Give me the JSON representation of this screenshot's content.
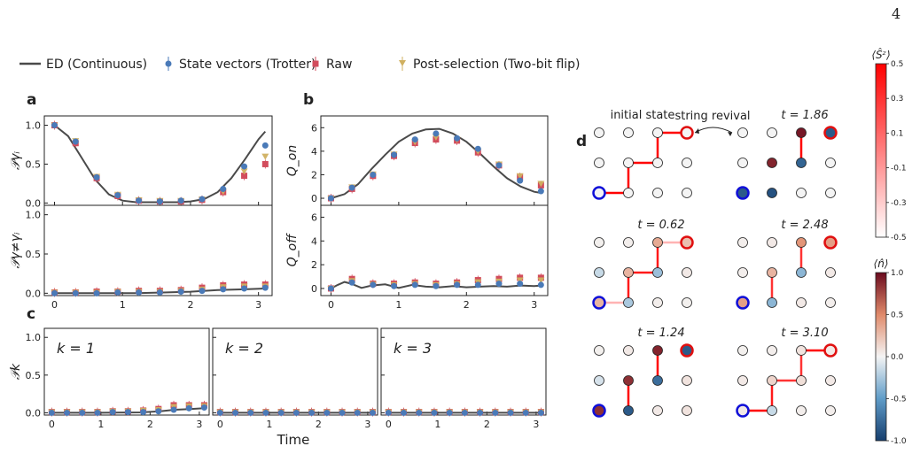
{
  "page_number": "4",
  "panel_labels": {
    "a": "a",
    "b": "b",
    "c": "c",
    "d": "d"
  },
  "legend": [
    {
      "label": "ED (Continuous)",
      "kind": "line",
      "color": "#4a4a4a"
    },
    {
      "label": "State vectors (Trotter)",
      "kind": "circle",
      "color": "#4a7ab8"
    },
    {
      "label": "Raw",
      "kind": "square",
      "color": "#d24c5c"
    },
    {
      "label": "Post-selection (Two-bit flip)",
      "kind": "triangle",
      "color": "#d0b060"
    }
  ],
  "xlabel": "Time",
  "colorbars": {
    "sz": {
      "label": "⟨Ŝᶻ⟩",
      "ticks": [
        "0.5",
        "0.3",
        "0.1",
        "-0.1",
        "-0.3",
        "-0.5"
      ],
      "tick_values": [
        0.5,
        0.3,
        0.1,
        -0.1,
        -0.3,
        -0.5
      ],
      "range": [
        -0.5,
        0.5
      ],
      "colors": [
        "#ffffff",
        "#ff0000"
      ]
    },
    "n": {
      "label": "⟨n̂⟩",
      "ticks": [
        "1.0",
        "0.5",
        "0.0",
        "-0.5",
        "-1.0"
      ],
      "tick_values": [
        1.0,
        0.5,
        0.0,
        -0.5,
        -1.0
      ],
      "range": [
        -1,
        1
      ],
      "colors": [
        "#163e6e",
        "#5f9cc8",
        "#f4f4f4",
        "#e08a6a",
        "#6a0a1e"
      ]
    }
  },
  "chart_data": [
    {
      "id": "a-top",
      "type": "line",
      "ylabel": "𝒫γᵢ",
      "xlim": [
        -0.15,
        3.2
      ],
      "ylim": [
        -0.03,
        1.12
      ],
      "xticks": [
        "0",
        "1",
        "2",
        "3"
      ],
      "yticks": [
        "0.0",
        "0.5",
        "1.0"
      ],
      "ed": {
        "x": [
          0,
          0.2,
          0.4,
          0.6,
          0.8,
          1.0,
          1.2,
          1.4,
          1.6,
          1.8,
          2.0,
          2.2,
          2.4,
          2.6,
          2.8,
          3.0,
          3.1
        ],
        "y": [
          1.0,
          0.86,
          0.58,
          0.3,
          0.11,
          0.03,
          0.01,
          0.01,
          0.01,
          0.01,
          0.02,
          0.05,
          0.14,
          0.32,
          0.56,
          0.82,
          0.92
        ]
      },
      "points_x": [
        0,
        0.31,
        0.62,
        0.93,
        1.24,
        1.55,
        1.86,
        2.17,
        2.48,
        2.79,
        3.1
      ],
      "state_vectors": [
        1.0,
        0.79,
        0.33,
        0.1,
        0.03,
        0.02,
        0.03,
        0.05,
        0.18,
        0.47,
        0.74
      ],
      "raw": [
        1.0,
        0.77,
        0.32,
        0.09,
        0.03,
        0.02,
        0.02,
        0.04,
        0.14,
        0.35,
        0.5
      ],
      "post_selection": [
        1.0,
        0.8,
        0.34,
        0.11,
        0.04,
        0.03,
        0.03,
        0.05,
        0.15,
        0.41,
        0.6
      ]
    },
    {
      "id": "a-bottom",
      "type": "line",
      "ylabel": "𝒫γ≠γᵢ",
      "xlim": [
        -0.15,
        3.2
      ],
      "ylim": [
        -0.03,
        1.12
      ],
      "xticks": [
        "0",
        "1",
        "2",
        "3"
      ],
      "yticks": [
        "0.0",
        "0.5",
        "1.0"
      ],
      "ed": {
        "x": [
          0,
          0.4,
          0.8,
          1.2,
          1.6,
          2.0,
          2.4,
          2.8,
          3.1
        ],
        "y": [
          0.0,
          0.0,
          0.0,
          0.0,
          0.01,
          0.02,
          0.04,
          0.05,
          0.06
        ]
      },
      "points_x": [
        0,
        0.31,
        0.62,
        0.93,
        1.24,
        1.55,
        1.86,
        2.17,
        2.48,
        2.79,
        3.1
      ],
      "state_vectors": [
        0.0,
        0.0,
        0.0,
        0.01,
        0.01,
        0.01,
        0.02,
        0.03,
        0.05,
        0.06,
        0.07
      ],
      "raw": [
        0.01,
        0.01,
        0.02,
        0.02,
        0.03,
        0.03,
        0.04,
        0.07,
        0.1,
        0.11,
        0.11
      ],
      "post_selection": [
        0.01,
        0.01,
        0.01,
        0.02,
        0.02,
        0.02,
        0.03,
        0.05,
        0.08,
        0.09,
        0.09
      ]
    },
    {
      "id": "b-top",
      "type": "line",
      "ylabel": "Q_on",
      "xlim": [
        -0.15,
        3.2
      ],
      "ylim": [
        -0.6,
        7.0
      ],
      "xticks": [
        "0",
        "1",
        "2",
        "3"
      ],
      "yticks": [
        "0",
        "2",
        "4",
        "6"
      ],
      "ed": {
        "x": [
          0,
          0.2,
          0.4,
          0.6,
          0.8,
          1.0,
          1.2,
          1.4,
          1.6,
          1.8,
          2.0,
          2.2,
          2.4,
          2.6,
          2.8,
          3.0,
          3.1
        ],
        "y": [
          0.0,
          0.35,
          1.2,
          2.5,
          3.7,
          4.8,
          5.5,
          5.85,
          5.9,
          5.5,
          4.8,
          3.8,
          2.7,
          1.7,
          1.0,
          0.55,
          0.45
        ]
      },
      "points_x": [
        0,
        0.31,
        0.62,
        0.93,
        1.24,
        1.55,
        1.86,
        2.17,
        2.48,
        2.79,
        3.1
      ],
      "state_vectors": [
        0.0,
        0.9,
        2.0,
        3.7,
        5.0,
        5.5,
        5.1,
        4.2,
        2.8,
        1.5,
        0.6
      ],
      "raw": [
        0.0,
        0.8,
        1.9,
        3.6,
        4.7,
        5.0,
        4.9,
        3.9,
        2.8,
        1.8,
        1.1
      ],
      "post_selection": [
        0.0,
        0.95,
        2.05,
        3.75,
        4.8,
        5.2,
        5.0,
        4.0,
        2.9,
        1.9,
        1.25
      ]
    },
    {
      "id": "b-bottom",
      "type": "line",
      "ylabel": "Q_off",
      "xlim": [
        -0.15,
        3.2
      ],
      "ylim": [
        -0.6,
        7.0
      ],
      "xticks": [
        "0",
        "1",
        "2",
        "3"
      ],
      "yticks": [
        "0",
        "2",
        "4",
        "6"
      ],
      "ed": {
        "x": [
          0,
          0.1,
          0.2,
          0.3,
          0.45,
          0.6,
          0.8,
          1.0,
          1.2,
          1.4,
          1.6,
          1.8,
          2.0,
          2.2,
          2.4,
          2.6,
          2.8,
          3.0,
          3.1
        ],
        "y": [
          0.0,
          0.3,
          0.55,
          0.4,
          0.05,
          0.25,
          0.35,
          0.05,
          0.3,
          0.15,
          0.1,
          0.2,
          0.1,
          0.15,
          0.2,
          0.15,
          0.25,
          0.2,
          0.25
        ]
      },
      "points_x": [
        0,
        0.31,
        0.62,
        0.93,
        1.24,
        1.55,
        1.86,
        2.17,
        2.48,
        2.79,
        3.1
      ],
      "state_vectors": [
        0.0,
        0.5,
        0.3,
        0.2,
        0.3,
        0.2,
        0.3,
        0.3,
        0.4,
        0.4,
        0.3
      ],
      "raw": [
        0.0,
        0.8,
        0.4,
        0.4,
        0.5,
        0.4,
        0.5,
        0.7,
        0.8,
        0.9,
        0.9
      ],
      "post_selection": [
        0.0,
        0.65,
        0.35,
        0.3,
        0.4,
        0.3,
        0.4,
        0.55,
        0.6,
        0.7,
        0.7
      ]
    },
    {
      "id": "c1",
      "type": "line",
      "ylabel": "𝒫k",
      "annotation": "k = 1",
      "xlim": [
        -0.15,
        3.2
      ],
      "ylim": [
        -0.03,
        1.12
      ],
      "xticks": [
        "0",
        "1",
        "2",
        "3"
      ],
      "yticks": [
        "0.0",
        "0.5",
        "1.0"
      ],
      "ed": {
        "x": [
          0,
          1.0,
          1.8,
          2.2,
          2.5,
          2.8,
          3.1
        ],
        "y": [
          0.0,
          0.0,
          0.005,
          0.02,
          0.04,
          0.05,
          0.06
        ]
      },
      "points_x": [
        0,
        0.31,
        0.62,
        0.93,
        1.24,
        1.55,
        1.86,
        2.17,
        2.48,
        2.79,
        3.1
      ],
      "state_vectors": [
        0.0,
        0.0,
        0.0,
        0.0,
        0.01,
        0.01,
        0.01,
        0.02,
        0.04,
        0.06,
        0.07
      ],
      "raw": [
        0.01,
        0.01,
        0.01,
        0.01,
        0.02,
        0.02,
        0.03,
        0.05,
        0.1,
        0.1,
        0.1
      ],
      "post_selection": [
        0.01,
        0.01,
        0.01,
        0.01,
        0.02,
        0.02,
        0.03,
        0.04,
        0.08,
        0.09,
        0.09
      ]
    },
    {
      "id": "c2",
      "type": "line",
      "annotation": "k = 2",
      "xlim": [
        -0.15,
        3.2
      ],
      "ylim": [
        -0.03,
        1.12
      ],
      "xticks": [
        "0",
        "1",
        "2",
        "3"
      ],
      "ed": {
        "x": [
          0,
          3.1
        ],
        "y": [
          0.0,
          0.0
        ]
      },
      "points_x": [
        0,
        0.31,
        0.62,
        0.93,
        1.24,
        1.55,
        1.86,
        2.17,
        2.48,
        2.79,
        3.1
      ],
      "state_vectors": [
        0,
        0,
        0,
        0,
        0,
        0,
        0,
        0,
        0,
        0,
        0
      ],
      "raw": [
        0.01,
        0.01,
        0.01,
        0.01,
        0.01,
        0.01,
        0.01,
        0.01,
        0.01,
        0.01,
        0.01
      ],
      "post_selection": [
        0.01,
        0.01,
        0.01,
        0.01,
        0.01,
        0.01,
        0.01,
        0.01,
        0.01,
        0.01,
        0.01
      ]
    },
    {
      "id": "c3",
      "type": "line",
      "annotation": "k = 3",
      "xlim": [
        -0.15,
        3.2
      ],
      "ylim": [
        -0.03,
        1.12
      ],
      "xticks": [
        "0",
        "1",
        "2",
        "3"
      ],
      "ed": {
        "x": [
          0,
          3.1
        ],
        "y": [
          0.0,
          0.0
        ]
      },
      "points_x": [
        0,
        0.31,
        0.62,
        0.93,
        1.24,
        1.55,
        1.86,
        2.17,
        2.48,
        2.79,
        3.1
      ],
      "state_vectors": [
        0,
        0,
        0,
        0,
        0,
        0,
        0,
        0,
        0,
        0,
        0
      ],
      "raw": [
        0.01,
        0.01,
        0.01,
        0.01,
        0.01,
        0.01,
        0.01,
        0.01,
        0.01,
        0.01,
        0.01
      ],
      "post_selection": [
        0.01,
        0.01,
        0.01,
        0.01,
        0.01,
        0.01,
        0.01,
        0.01,
        0.01,
        0.01,
        0.01
      ]
    }
  ],
  "panel_d": {
    "revival_label": "string revival",
    "snapshots": [
      {
        "label": "initial state",
        "n": [
          [
            0,
            0,
            0,
            0
          ],
          [
            0,
            0,
            0,
            0
          ],
          [
            0,
            0,
            0,
            0
          ]
        ],
        "boundary": [
          [
            0,
            3,
            "red"
          ],
          [
            2,
            0,
            "blue"
          ]
        ],
        "links": [
          [
            2,
            0,
            2,
            1,
            0.5
          ],
          [
            2,
            1,
            1,
            1,
            0.5
          ],
          [
            1,
            1,
            1,
            2,
            0.5
          ],
          [
            1,
            2,
            0,
            2,
            0.5
          ],
          [
            0,
            2,
            0,
            3,
            0.5
          ]
        ]
      },
      {
        "label": "t = 1.86",
        "n": [
          [
            0,
            0,
            0.95,
            -0.85
          ],
          [
            0,
            0.9,
            -0.8,
            0
          ],
          [
            -0.85,
            -0.9,
            0,
            0
          ]
        ],
        "boundary": [
          [
            0,
            3,
            "red"
          ],
          [
            2,
            0,
            "blue"
          ]
        ],
        "links": [
          [
            0,
            2,
            1,
            2,
            0.5
          ]
        ]
      },
      {
        "label": "t = 0.62",
        "n": [
          [
            0.02,
            0.03,
            0.35,
            0.25
          ],
          [
            -0.15,
            0.3,
            -0.3,
            0.05
          ],
          [
            0.3,
            -0.25,
            0.03,
            0.02
          ]
        ],
        "boundary": [
          [
            0,
            3,
            "red"
          ],
          [
            2,
            0,
            "blue"
          ]
        ],
        "links": [
          [
            2,
            0,
            2,
            1,
            0.15
          ],
          [
            2,
            1,
            1,
            1,
            0.45
          ],
          [
            1,
            1,
            1,
            2,
            0.45
          ],
          [
            1,
            2,
            0,
            2,
            0.45
          ],
          [
            0,
            2,
            0,
            3,
            0.15
          ]
        ]
      },
      {
        "label": "t = 2.48",
        "n": [
          [
            0.03,
            0.05,
            0.45,
            0.4
          ],
          [
            0.03,
            0.3,
            -0.35,
            0.05
          ],
          [
            0.4,
            -0.35,
            0.05,
            0.03
          ]
        ],
        "boundary": [
          [
            0,
            3,
            "red"
          ],
          [
            2,
            0,
            "blue"
          ]
        ],
        "links": [
          [
            0,
            2,
            1,
            2,
            0.4
          ],
          [
            1,
            1,
            2,
            1,
            0.4
          ]
        ]
      },
      {
        "label": "t = 1.24",
        "n": [
          [
            0.02,
            0.05,
            0.9,
            -0.85
          ],
          [
            -0.1,
            0.85,
            -0.75,
            0.08
          ],
          [
            0.85,
            -0.85,
            0.05,
            0.08
          ]
        ],
        "boundary": [
          [
            0,
            3,
            "red"
          ],
          [
            2,
            0,
            "blue"
          ]
        ],
        "links": [
          [
            0,
            2,
            1,
            2,
            0.5
          ],
          [
            1,
            1,
            2,
            1,
            0.5
          ]
        ]
      },
      {
        "label": "t = 3.10",
        "n": [
          [
            0.02,
            0.03,
            0.08,
            0.05
          ],
          [
            0.05,
            0.15,
            0.1,
            0.05
          ],
          [
            0.05,
            -0.15,
            0.03,
            0.03
          ]
        ],
        "boundary": [
          [
            0,
            3,
            "red"
          ],
          [
            2,
            0,
            "blue"
          ]
        ],
        "links": [
          [
            2,
            0,
            2,
            1,
            0.5
          ],
          [
            2,
            1,
            1,
            1,
            0.45
          ],
          [
            1,
            1,
            1,
            2,
            0.4
          ],
          [
            1,
            2,
            0,
            2,
            0.4
          ],
          [
            0,
            2,
            0,
            3,
            0.5
          ]
        ]
      }
    ]
  }
}
